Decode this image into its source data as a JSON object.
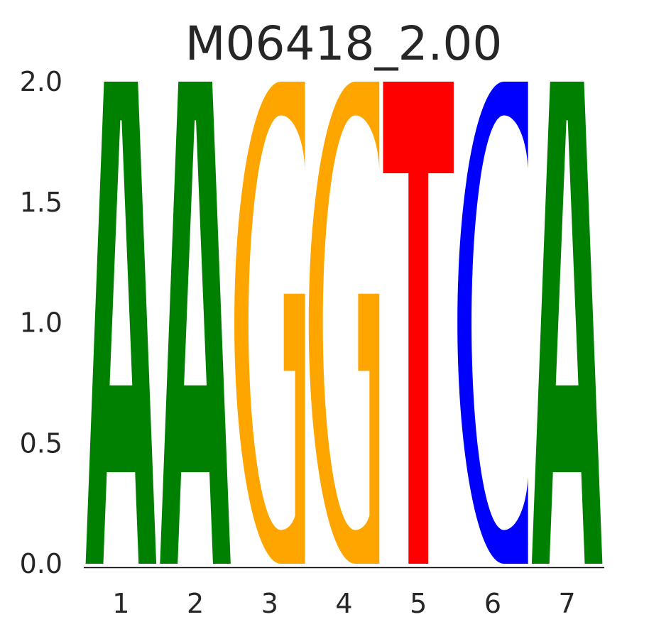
{
  "chart_data": {
    "type": "sequence-logo",
    "title": "M06418_2.00",
    "xlabel": "",
    "ylabel": "",
    "ylim": [
      0,
      2.0
    ],
    "yticks": [
      "0.0",
      "0.5",
      "1.0",
      "1.5",
      "2.0"
    ],
    "yticks_values": [
      0,
      0.5,
      1.0,
      1.5,
      2.0
    ],
    "positions": [
      1,
      2,
      3,
      4,
      5,
      6,
      7
    ],
    "xticks": [
      "1",
      "2",
      "3",
      "4",
      "5",
      "6",
      "7"
    ],
    "letters": [
      {
        "position": 1,
        "base": "A",
        "height": 2.0
      },
      {
        "position": 2,
        "base": "A",
        "height": 2.0
      },
      {
        "position": 3,
        "base": "G",
        "height": 2.0
      },
      {
        "position": 4,
        "base": "G",
        "height": 2.0
      },
      {
        "position": 5,
        "base": "T",
        "height": 2.0
      },
      {
        "position": 6,
        "base": "C",
        "height": 2.0
      },
      {
        "position": 7,
        "base": "A",
        "height": 2.0
      }
    ],
    "colors": {
      "A": "#008000",
      "C": "#0000ff",
      "G": "#ffa500",
      "T": "#ff0000"
    },
    "grid": false
  }
}
